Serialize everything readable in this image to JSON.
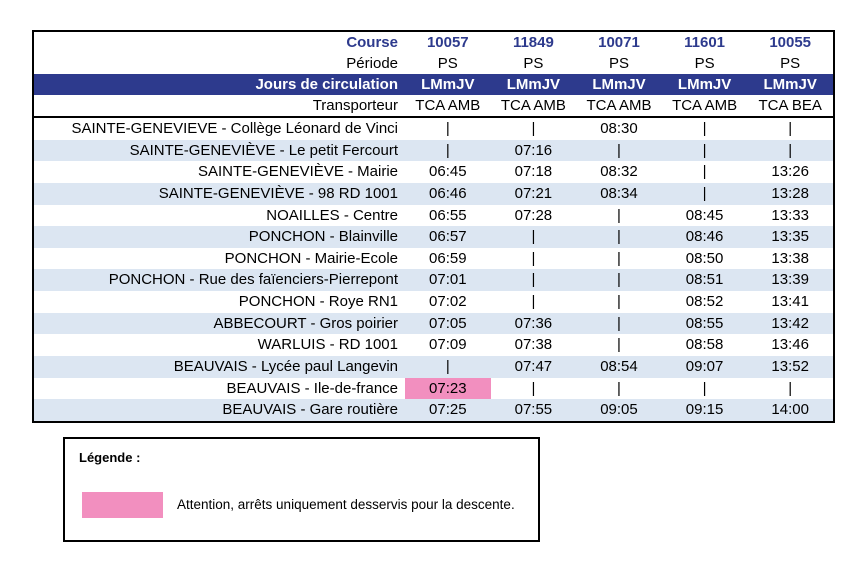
{
  "colors": {
    "navy": "#2D3A8D",
    "row_stripe": "#DCE6F2",
    "highlight_pink": "#F28FBF",
    "border": "#000000"
  },
  "table": {
    "header": {
      "course_label": "Course",
      "periode_label": "Période",
      "jours_label": "Jours de circulation",
      "transporteur_label": "Transporteur",
      "courses": [
        "10057",
        "11849",
        "10071",
        "11601",
        "10055"
      ],
      "periodes": [
        "PS",
        "PS",
        "PS",
        "PS",
        "PS"
      ],
      "jours": [
        "LMmJV",
        "LMmJV",
        "LMmJV",
        "LMmJV",
        "LMmJV"
      ],
      "transporteurs": [
        "TCA AMB",
        "TCA AMB",
        "TCA AMB",
        "TCA AMB",
        "TCA BEA"
      ]
    },
    "no_stop_symbol": "|",
    "rows": [
      {
        "stop": "SAINTE-GENEVIEVE - Collège Léonard de Vinci",
        "times": [
          "|",
          "|",
          "08:30",
          "|",
          "|"
        ]
      },
      {
        "stop": "SAINTE-GENEVIÈVE - Le petit Fercourt",
        "times": [
          "|",
          "07:16",
          "|",
          "|",
          "|"
        ]
      },
      {
        "stop": "SAINTE-GENEVIÈVE - Mairie",
        "times": [
          "06:45",
          "07:18",
          "08:32",
          "|",
          "13:26"
        ]
      },
      {
        "stop": "SAINTE-GENEVIÈVE - 98 RD 1001",
        "times": [
          "06:46",
          "07:21",
          "08:34",
          "|",
          "13:28"
        ]
      },
      {
        "stop": "NOAILLES - Centre",
        "times": [
          "06:55",
          "07:28",
          "|",
          "08:45",
          "13:33"
        ]
      },
      {
        "stop": "PONCHON - Blainville",
        "times": [
          "06:57",
          "|",
          "|",
          "08:46",
          "13:35"
        ]
      },
      {
        "stop": "PONCHON - Mairie-Ecole",
        "times": [
          "06:59",
          "|",
          "|",
          "08:50",
          "13:38"
        ]
      },
      {
        "stop": "PONCHON - Rue des faïenciers-Pierrepont",
        "times": [
          "07:01",
          "|",
          "|",
          "08:51",
          "13:39"
        ]
      },
      {
        "stop": "PONCHON - Roye RN1",
        "times": [
          "07:02",
          "|",
          "|",
          "08:52",
          "13:41"
        ]
      },
      {
        "stop": "ABBECOURT - Gros poirier",
        "times": [
          "07:05",
          "07:36",
          "|",
          "08:55",
          "13:42"
        ]
      },
      {
        "stop": "WARLUIS - RD 1001",
        "times": [
          "07:09",
          "07:38",
          "|",
          "08:58",
          "13:46"
        ]
      },
      {
        "stop": "BEAUVAIS - Lycée paul Langevin",
        "times": [
          "|",
          "07:47",
          "08:54",
          "09:07",
          "13:52"
        ]
      },
      {
        "stop": "BEAUVAIS - Ile-de-france",
        "times": [
          "07:23",
          "|",
          "|",
          "|",
          "|"
        ]
      },
      {
        "stop": "BEAUVAIS - Gare routière",
        "times": [
          "07:25",
          "07:55",
          "09:05",
          "09:15",
          "14:00"
        ]
      }
    ],
    "highlighted_cell": {
      "row": 12,
      "col": 0
    }
  },
  "legend": {
    "title": "Légende :",
    "note": "Attention, arrêts uniquement desservis pour la descente."
  }
}
